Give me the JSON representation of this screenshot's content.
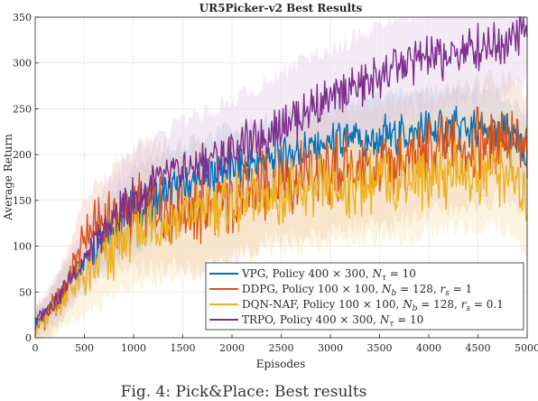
{
  "chart_data": {
    "type": "line",
    "title": "UR5Picker-v2 Best Results",
    "xlabel": "Episodes",
    "ylabel": "Average Return",
    "xlim": [
      0,
      5000
    ],
    "ylim": [
      0,
      350
    ],
    "xticks": [
      "0",
      "500",
      "1000",
      "1500",
      "2000",
      "2500",
      "3000",
      "3500",
      "4000",
      "4500",
      "5000"
    ],
    "yticks": [
      "0",
      "50",
      "100",
      "150",
      "200",
      "250",
      "300",
      "350"
    ],
    "grid": true,
    "legend_position": "bottom-right",
    "caption": "Fig. 4: Pick&Place: Best results",
    "series": [
      {
        "name": "VPG, Policy 400 × 300, N_τ = 10",
        "legend_html": "VPG, Policy 400 × 300, <tspan font-style='italic'>N</tspan><tspan font-style='italic' font-size='9' dy='3'>τ</tspan><tspan dy='-3'> = 10</tspan>",
        "color": "#0072BD",
        "shade": "#9ec9ea",
        "x": [
          0,
          100,
          200,
          300,
          400,
          500,
          600,
          700,
          800,
          900,
          1000,
          1200,
          1400,
          1600,
          1800,
          2000,
          2200,
          2400,
          2600,
          2800,
          3000,
          3200,
          3400,
          3600,
          3800,
          4000,
          4200,
          4400,
          4600,
          4800,
          5000
        ],
        "y": [
          15,
          25,
          40,
          55,
          70,
          85,
          100,
          112,
          122,
          130,
          138,
          150,
          160,
          170,
          178,
          185,
          190,
          195,
          200,
          205,
          210,
          213,
          216,
          220,
          223,
          225,
          227,
          228,
          225,
          220,
          200
        ]
      },
      {
        "name": "DDPG, Policy 100 × 100, N_b = 128, r_s = 1",
        "legend_html": "DDPG, Policy 100 × 100, <tspan font-style='italic'>N</tspan><tspan font-style='italic' font-size='9' dy='3'>b</tspan><tspan dy='-3'> = 128, </tspan><tspan font-style='italic'>r</tspan><tspan font-style='italic' font-size='9' dy='3'>s</tspan><tspan dy='-3'> = 1</tspan>",
        "color": "#D95319",
        "shade": "#f2bfa6",
        "x": [
          0,
          100,
          200,
          300,
          400,
          500,
          600,
          700,
          800,
          900,
          1000,
          1200,
          1400,
          1600,
          1800,
          2000,
          2200,
          2400,
          2600,
          2800,
          3000,
          3200,
          3400,
          3600,
          3800,
          4000,
          4200,
          4400,
          4600,
          4800,
          5000
        ],
        "y": [
          10,
          20,
          35,
          55,
          80,
          110,
          120,
          125,
          130,
          135,
          140,
          145,
          140,
          138,
          145,
          150,
          160,
          170,
          175,
          180,
          182,
          185,
          188,
          190,
          195,
          200,
          205,
          210,
          215,
          220,
          200
        ]
      },
      {
        "name": "DQN-NAF, Policy 100 × 100, N_b = 128, r_s = 0.1",
        "legend_html": "DQN-NAF, Policy 100 × 100, <tspan font-style='italic'>N</tspan><tspan font-style='italic' font-size='9' dy='3'>b</tspan><tspan dy='-3'> = 128, </tspan><tspan font-style='italic'>r</tspan><tspan font-style='italic' font-size='9' dy='3'>s</tspan><tspan dy='-3'> = 0.1</tspan>",
        "color": "#EDB120",
        "shade": "#f7e0a3",
        "x": [
          0,
          100,
          200,
          300,
          400,
          500,
          600,
          700,
          800,
          900,
          1000,
          1200,
          1400,
          1600,
          1800,
          2000,
          2200,
          2400,
          2600,
          2800,
          3000,
          3200,
          3400,
          3600,
          3800,
          4000,
          4200,
          4400,
          4600,
          4800,
          5000
        ],
        "y": [
          10,
          18,
          30,
          45,
          55,
          65,
          75,
          85,
          95,
          105,
          115,
          125,
          130,
          135,
          140,
          145,
          150,
          155,
          158,
          160,
          162,
          165,
          168,
          170,
          172,
          175,
          178,
          180,
          182,
          180,
          150
        ]
      },
      {
        "name": "TRPO, Policy 400 × 300, N_τ = 10",
        "legend_html": "TRPO, Policy 400 × 300, <tspan font-style='italic'>N</tspan><tspan font-style='italic' font-size='9' dy='3'>τ</tspan><tspan dy='-3'> = 10</tspan>",
        "color": "#7E2F8E",
        "shade": "#dcc3e3",
        "x": [
          0,
          100,
          200,
          300,
          400,
          500,
          600,
          700,
          800,
          900,
          1000,
          1200,
          1400,
          1600,
          1800,
          2000,
          2200,
          2400,
          2600,
          2800,
          3000,
          3200,
          3400,
          3600,
          3800,
          4000,
          4200,
          4400,
          4600,
          4800,
          5000
        ],
        "y": [
          20,
          28,
          40,
          55,
          70,
          85,
          100,
          115,
          130,
          140,
          150,
          165,
          175,
          185,
          195,
          205,
          215,
          225,
          240,
          250,
          260,
          270,
          280,
          290,
          300,
          305,
          310,
          315,
          320,
          325,
          340
        ]
      }
    ]
  }
}
